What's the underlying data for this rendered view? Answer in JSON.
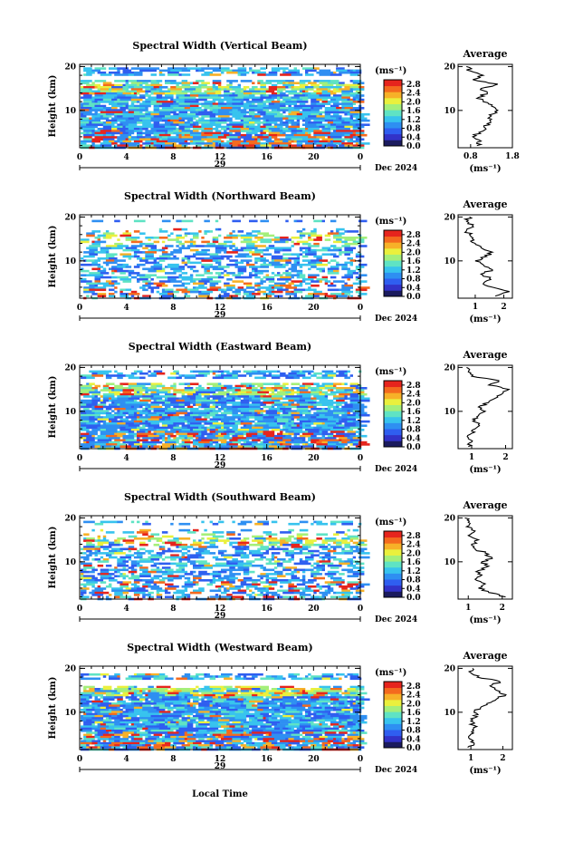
{
  "figure": {
    "x_axis_title": "Local Time",
    "date_label": "Dec 2024",
    "day_label": "29",
    "average_title": "Average",
    "unit_label": "(ms⁻¹)",
    "y_axis_title": "Height (km)"
  },
  "colorbar": {
    "ticks": [
      "0.0",
      "0.4",
      "0.8",
      "1.2",
      "1.6",
      "2.0",
      "2.4",
      "2.8"
    ],
    "colors": [
      "#1b1b5e",
      "#3232c8",
      "#2f5ef0",
      "#2e8ff2",
      "#37c3ee",
      "#5fe3c4",
      "#a4ef7a",
      "#eaf03d",
      "#f7b128",
      "#f46a1e",
      "#e6241d"
    ],
    "range": [
      0.0,
      3.0
    ]
  },
  "chart_data": [
    {
      "type": "heatmap",
      "title": "Spectral Width (Vertical Beam)",
      "xlabel": "",
      "ylabel": "Height (km)",
      "xlim": [
        0,
        24
      ],
      "ylim": [
        1.5,
        20.5
      ],
      "xticks": [
        "0",
        "4",
        "8",
        "12",
        "16",
        "20",
        "0"
      ],
      "yticks": [
        "10",
        "20"
      ],
      "coverage": "dense 2-17 km and 18-20 km, gap near 17-18 km",
      "average_profile": {
        "title": "Average",
        "xlabel": "(ms⁻¹)",
        "xlim": [
          0.5,
          1.8
        ],
        "xticks": [
          "0.8",
          "1.8"
        ],
        "height_km": [
          2,
          3,
          4,
          5,
          6,
          7,
          8,
          9,
          10,
          11,
          12,
          13,
          14,
          15,
          16,
          17,
          18,
          19,
          20
        ],
        "values": [
          0.95,
          1.05,
          0.85,
          1.0,
          1.15,
          1.2,
          1.3,
          1.25,
          1.45,
          1.3,
          1.1,
          1.0,
          1.2,
          1.05,
          1.45,
          0.85,
          1.1,
          0.8,
          0.7
        ]
      }
    },
    {
      "type": "heatmap",
      "title": "Spectral Width (Northward Beam)",
      "xlabel": "",
      "ylabel": "Height (km)",
      "xlim": [
        0,
        24
      ],
      "ylim": [
        1.5,
        20.5
      ],
      "xticks": [
        "0",
        "4",
        "8",
        "12",
        "16",
        "20",
        "0"
      ],
      "yticks": [
        "10",
        "20"
      ],
      "coverage": "sparse patches, mostly 2-17 km",
      "average_profile": {
        "title": "Average",
        "xlabel": "(ms⁻¹)",
        "xlim": [
          0.4,
          2.3
        ],
        "xticks": [
          "1",
          "2"
        ],
        "height_km": [
          2,
          3,
          4,
          5,
          6,
          7,
          8,
          9,
          10,
          11,
          12,
          13,
          14,
          15,
          16,
          17,
          18,
          19,
          20
        ],
        "values": [
          1.7,
          2.2,
          1.6,
          1.3,
          1.5,
          1.2,
          1.6,
          1.3,
          1.0,
          1.4,
          1.6,
          1.2,
          1.0,
          0.9,
          0.8,
          0.7,
          0.9,
          0.7,
          0.8
        ]
      }
    },
    {
      "type": "heatmap",
      "title": "Spectral Width (Eastward Beam)",
      "xlabel": "",
      "ylabel": "Height (km)",
      "xlim": [
        0,
        24
      ],
      "ylim": [
        1.5,
        20.5
      ],
      "xticks": [
        "0",
        "4",
        "8",
        "12",
        "16",
        "20",
        "0"
      ],
      "yticks": [
        "10",
        "20"
      ],
      "coverage": "dense 2-16 km, thin layers 16-19 km",
      "average_profile": {
        "title": "Average",
        "xlabel": "(ms⁻¹)",
        "xlim": [
          0.6,
          2.2
        ],
        "xticks": [
          "1",
          "2"
        ],
        "height_km": [
          2,
          3,
          4,
          5,
          6,
          7,
          8,
          9,
          10,
          11,
          12,
          13,
          14,
          15,
          16,
          17,
          18,
          19,
          20
        ],
        "values": [
          0.9,
          1.0,
          0.9,
          1.0,
          1.1,
          1.2,
          1.1,
          1.2,
          1.4,
          1.2,
          1.5,
          1.7,
          1.9,
          2.1,
          1.5,
          1.8,
          1.0,
          0.9,
          0.85
        ]
      }
    },
    {
      "type": "heatmap",
      "title": "Spectral Width (Southward Beam)",
      "xlabel": "",
      "ylabel": "Height (km)",
      "xlim": [
        0,
        24
      ],
      "ylim": [
        1.5,
        20.5
      ],
      "xticks": [
        "0",
        "4",
        "8",
        "12",
        "16",
        "20",
        "0"
      ],
      "yticks": [
        "10",
        "20"
      ],
      "coverage": "sparse patches, mostly 2-17 km",
      "average_profile": {
        "title": "Average",
        "xlabel": "(ms⁻¹)",
        "xlim": [
          0.7,
          2.3
        ],
        "xticks": [
          "1",
          "2"
        ],
        "height_km": [
          2,
          3,
          4,
          5,
          6,
          7,
          8,
          9,
          10,
          11,
          12,
          13,
          14,
          15,
          16,
          17,
          18,
          19,
          20
        ],
        "values": [
          2.1,
          1.6,
          1.3,
          1.5,
          1.2,
          1.4,
          1.3,
          1.6,
          1.4,
          1.7,
          1.5,
          1.2,
          1.1,
          1.3,
          1.0,
          1.2,
          0.95,
          1.0,
          0.9
        ]
      }
    },
    {
      "type": "heatmap",
      "title": "Spectral Width (Westward Beam)",
      "xlabel": "Local Time",
      "ylabel": "Height (km)",
      "xlim": [
        0,
        24
      ],
      "ylim": [
        1.5,
        20.5
      ],
      "xticks": [
        "0",
        "4",
        "8",
        "12",
        "16",
        "20",
        "0"
      ],
      "yticks": [
        "10",
        "20"
      ],
      "coverage": "dense 2-16 km, thin layers 16-19 km",
      "average_profile": {
        "title": "Average",
        "xlabel": "(ms⁻¹)",
        "xlim": [
          0.6,
          2.3
        ],
        "xticks": [
          "1",
          "2"
        ],
        "height_km": [
          2,
          3,
          4,
          5,
          6,
          7,
          8,
          9,
          10,
          11,
          12,
          13,
          14,
          15,
          16,
          17,
          18,
          19,
          20
        ],
        "values": [
          0.9,
          1.1,
          0.95,
          1.0,
          1.05,
          1.1,
          1.0,
          1.2,
          1.1,
          1.3,
          1.5,
          1.8,
          2.1,
          1.8,
          1.6,
          1.9,
          1.2,
          1.0,
          1.05
        ]
      }
    }
  ]
}
